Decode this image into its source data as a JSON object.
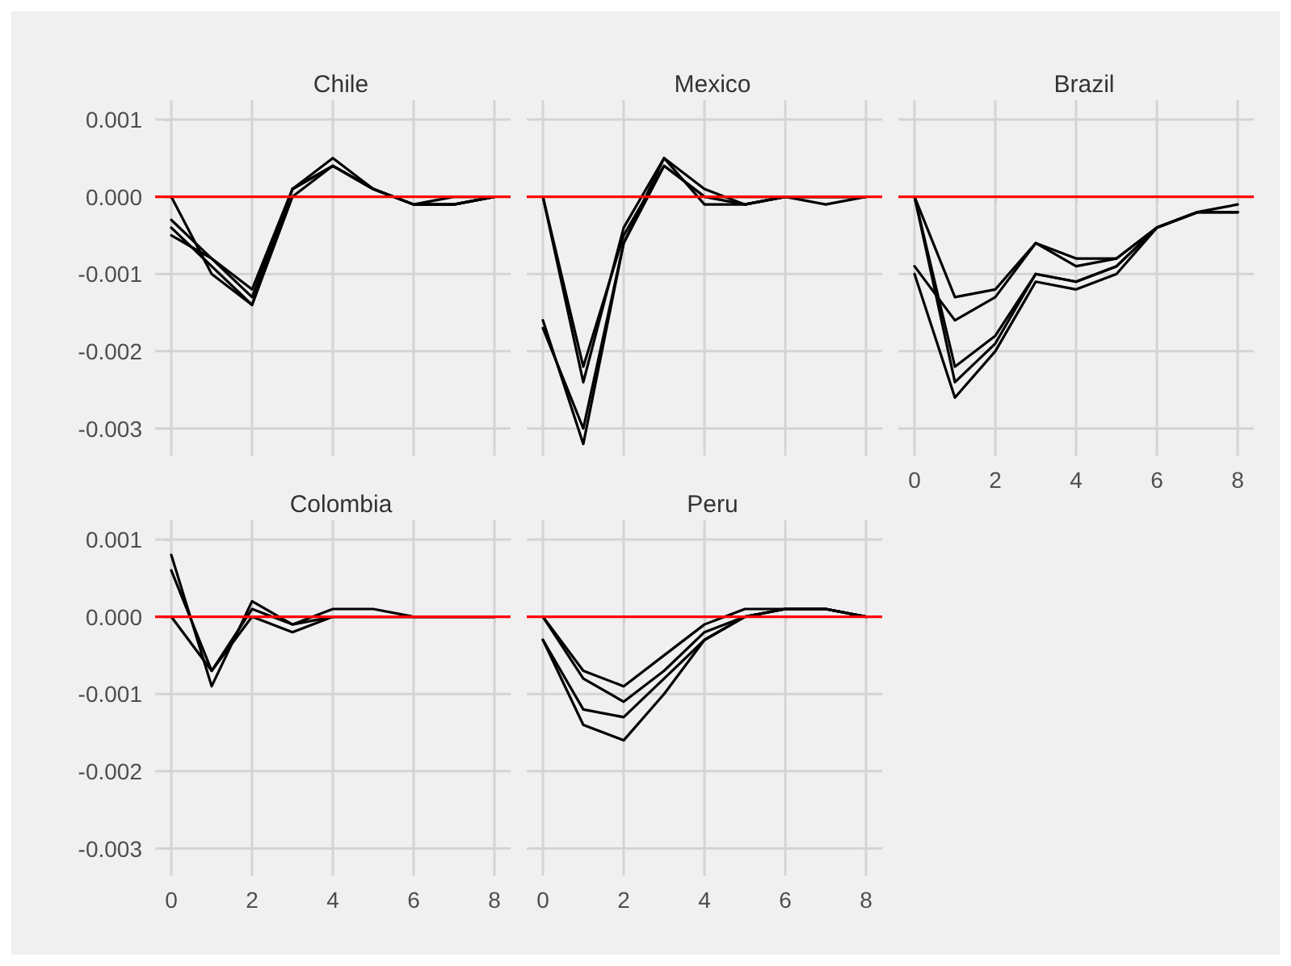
{
  "chart_data": [
    {
      "type": "line",
      "title": "Chile",
      "x": [
        0,
        1,
        2,
        3,
        4,
        5,
        6,
        7,
        8
      ],
      "xlim": [
        -0.4,
        8.4
      ],
      "xticks": [
        0,
        2,
        4,
        6,
        8
      ],
      "ylim": [
        -0.00335,
        0.00125
      ],
      "yticks": [
        -0.003,
        -0.002,
        -0.001,
        {
          "value": 0,
          "label": "0.000"
        },
        0.001
      ],
      "grid": true,
      "tick_labels": "y",
      "marker": "none",
      "ref_lines": [
        {
          "axis": "y",
          "value": 0,
          "color": "#ff0000"
        }
      ],
      "series": [
        {
          "color": "#000000",
          "values": [
            0,
            -0.001,
            -0.0014,
            0.0001,
            0.0004,
            0.0001,
            -0.0001,
            -0.0001,
            0
          ]
        },
        {
          "color": "#000000",
          "values": [
            -0.0003,
            -0.0008,
            -0.0012,
            0.0001,
            0.0004,
            0.0001,
            -0.0001,
            -0.0001,
            0
          ]
        },
        {
          "color": "#000000",
          "values": [
            -0.0005,
            -0.0008,
            -0.0013,
            0.0001,
            0.0005,
            0.0001,
            -0.0001,
            -0.0001,
            0
          ]
        },
        {
          "color": "#000000",
          "values": [
            -0.0004,
            -0.0009,
            -0.0014,
            0,
            0.0004,
            0.0001,
            -0.0001,
            0,
            0
          ]
        }
      ]
    },
    {
      "type": "line",
      "title": "Mexico",
      "x": [
        0,
        1,
        2,
        3,
        4,
        5,
        6,
        7,
        8
      ],
      "xlim": [
        -0.4,
        8.4
      ],
      "xticks": [
        0,
        2,
        4,
        6,
        8
      ],
      "ylim": [
        -0.00335,
        0.00125
      ],
      "yticks": [
        -0.003,
        -0.002,
        -0.001,
        0,
        0.001
      ],
      "grid": true,
      "tick_labels": false,
      "marker": "none",
      "ref_lines": [
        {
          "axis": "y",
          "value": 0,
          "color": "#ff0000"
        }
      ],
      "series": [
        {
          "color": "#000000",
          "values": [
            0,
            -0.0024,
            -0.0004,
            0.0005,
            0.0001,
            -0.0001,
            0,
            -0.0001,
            0
          ]
        },
        {
          "color": "#000000",
          "values": [
            0,
            -0.0022,
            -0.0005,
            0.0004,
            0,
            0,
            0,
            0,
            0
          ]
        },
        {
          "color": "#000000",
          "values": [
            -0.0016,
            -0.0032,
            -0.0006,
            0.0005,
            -0.0001,
            -0.0001,
            0,
            0,
            0
          ]
        },
        {
          "color": "#000000",
          "values": [
            -0.0017,
            -0.003,
            -0.0006,
            0.0004,
            0,
            -0.0001,
            0,
            0,
            0
          ]
        }
      ]
    },
    {
      "type": "line",
      "title": "Brazil",
      "x": [
        0,
        1,
        2,
        3,
        4,
        5,
        6,
        7,
        8
      ],
      "xlim": [
        -0.4,
        8.4
      ],
      "xticks": [
        0,
        2,
        4,
        6,
        8
      ],
      "ylim": [
        -0.00335,
        0.00125
      ],
      "yticks": [
        -0.003,
        -0.002,
        -0.001,
        0,
        0.001
      ],
      "grid": true,
      "tick_labels": "x",
      "marker": "none",
      "ref_lines": [
        {
          "axis": "y",
          "value": 0,
          "color": "#ff0000"
        }
      ],
      "series": [
        {
          "color": "#000000",
          "values": [
            0,
            -0.0013,
            -0.0012,
            -0.0006,
            -0.0008,
            -0.0008,
            -0.0004,
            -0.0002,
            -0.0001
          ]
        },
        {
          "color": "#000000",
          "values": [
            -0.0009,
            -0.0016,
            -0.0013,
            -0.0006,
            -0.0009,
            -0.0008,
            -0.0004,
            -0.0002,
            -0.0002
          ]
        },
        {
          "color": "#000000",
          "values": [
            0,
            -0.0022,
            -0.0018,
            -0.001,
            -0.0011,
            -0.0009,
            -0.0004,
            -0.0002,
            -0.0002
          ]
        },
        {
          "color": "#000000",
          "values": [
            -0.001,
            -0.0026,
            -0.002,
            -0.0011,
            -0.0012,
            -0.001,
            -0.0004,
            -0.0002,
            -0.0002
          ]
        },
        {
          "color": "#000000",
          "values": [
            0,
            -0.0024,
            -0.0019,
            -0.001,
            -0.0011,
            -0.0009,
            -0.0004,
            -0.0002,
            -0.0002
          ]
        }
      ]
    },
    {
      "type": "line",
      "title": "Colombia",
      "x": [
        0,
        1,
        2,
        3,
        4,
        5,
        6,
        7,
        8
      ],
      "xlim": [
        -0.4,
        8.4
      ],
      "xticks": [
        0,
        2,
        4,
        6,
        8
      ],
      "ylim": [
        -0.00335,
        0.00125
      ],
      "yticks": [
        -0.003,
        -0.002,
        -0.001,
        {
          "value": 0,
          "label": "0.000"
        },
        0.001
      ],
      "grid": true,
      "marker": "none",
      "ref_lines": [
        {
          "axis": "y",
          "value": 0,
          "color": "#ff0000"
        }
      ],
      "series": [
        {
          "color": "#000000",
          "values": [
            0.0008,
            -0.0009,
            0.0002,
            -0.0001,
            0.0001,
            0.0001,
            0,
            0,
            0
          ]
        },
        {
          "color": "#000000",
          "values": [
            0.0006,
            -0.0007,
            0.0001,
            -0.0001,
            0,
            0,
            0,
            0,
            0
          ]
        },
        {
          "color": "#000000",
          "values": [
            0,
            -0.0007,
            0,
            -0.0002,
            0,
            0,
            0,
            0,
            0
          ]
        }
      ]
    },
    {
      "type": "line",
      "title": "Peru",
      "x": [
        0,
        1,
        2,
        3,
        4,
        5,
        6,
        7,
        8
      ],
      "xlim": [
        -0.4,
        8.4
      ],
      "xticks": [
        0,
        2,
        4,
        6,
        8
      ],
      "ylim": [
        -0.00335,
        0.00125
      ],
      "yticks": [
        -0.003,
        -0.002,
        -0.001,
        0,
        0.001
      ],
      "grid": true,
      "tick_labels": "x",
      "marker": "none",
      "ref_lines": [
        {
          "axis": "y",
          "value": 0,
          "color": "#ff0000"
        }
      ],
      "series": [
        {
          "color": "#000000",
          "values": [
            0,
            -0.0007,
            -0.0009,
            -0.0005,
            -0.0001,
            0.0001,
            0.0001,
            0.0001,
            0
          ]
        },
        {
          "color": "#000000",
          "values": [
            0,
            -0.0008,
            -0.0011,
            -0.0007,
            -0.0002,
            0,
            0.0001,
            0.0001,
            0
          ]
        },
        {
          "color": "#000000",
          "values": [
            -0.0003,
            -0.0012,
            -0.0013,
            -0.0008,
            -0.0003,
            0,
            0.0001,
            0.0001,
            0
          ]
        },
        {
          "color": "#000000",
          "values": [
            -0.0003,
            -0.0014,
            -0.0016,
            -0.001,
            -0.0003,
            0,
            0.0001,
            0.0001,
            0
          ]
        }
      ]
    }
  ]
}
